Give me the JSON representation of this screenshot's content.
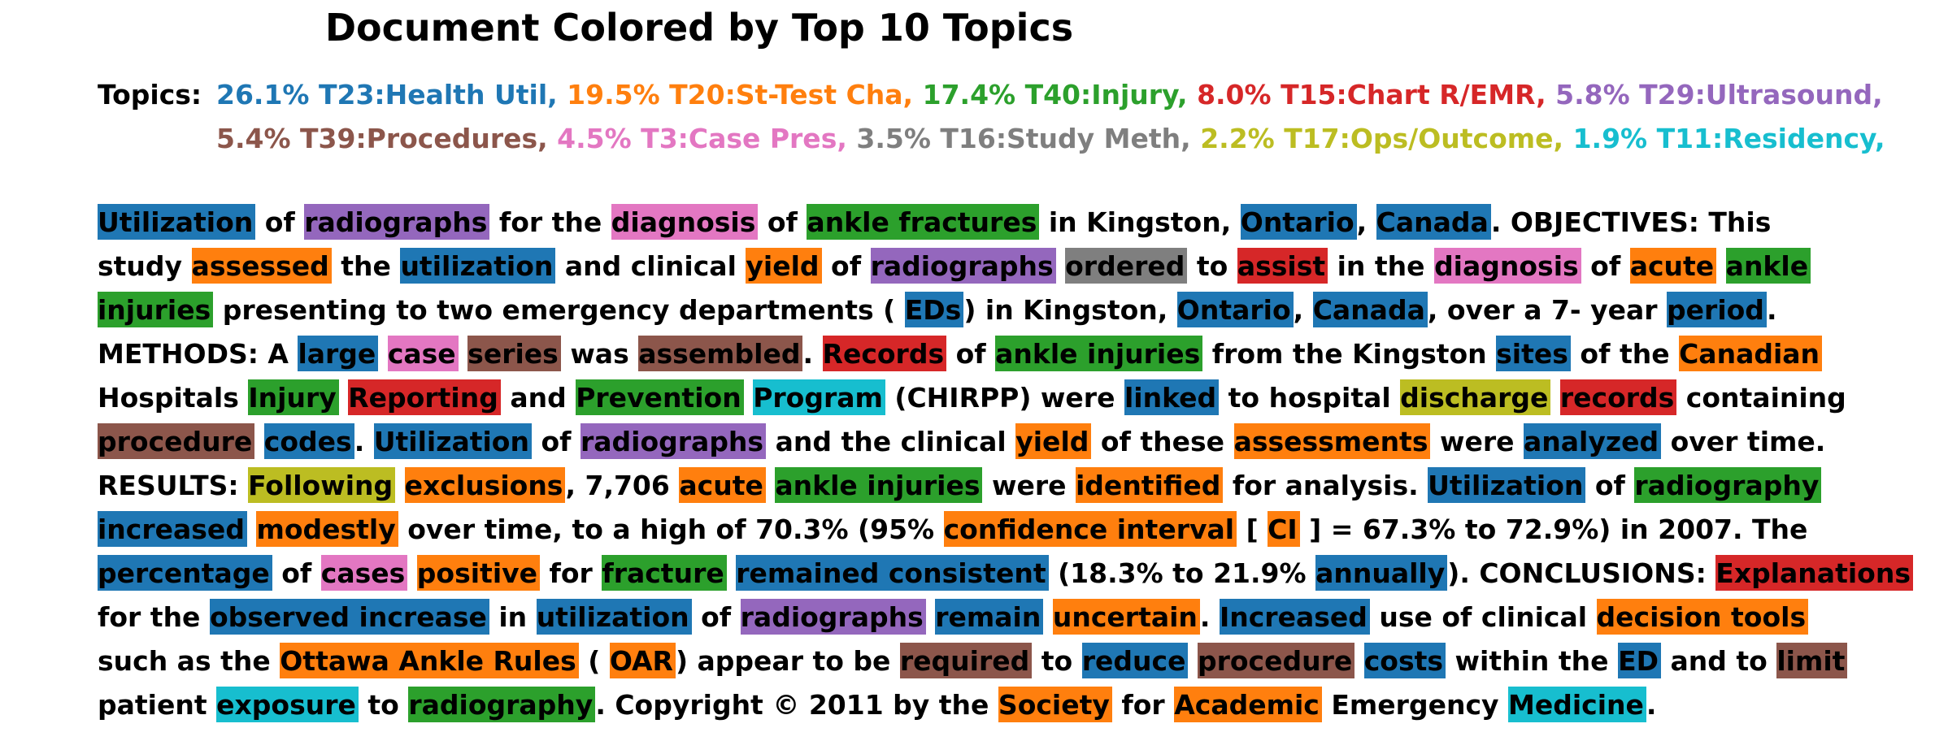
{
  "chart_data": {
    "type": "table",
    "title": "Document Colored by Top 10 Topics",
    "legend_label": "Topics:",
    "topics": [
      {
        "id": "T23",
        "label": "26.1% T23:Health Util,",
        "percent": 26.1,
        "color": "#1f77b4"
      },
      {
        "id": "T20",
        "label": "19.5% T20:St-Test Cha,",
        "percent": 19.5,
        "color": "#ff7f0e"
      },
      {
        "id": "T40",
        "label": "17.4% T40:Injury,",
        "percent": 17.4,
        "color": "#2ca02c"
      },
      {
        "id": "T15",
        "label": "8.0% T15:Chart R/EMR,",
        "percent": 8.0,
        "color": "#d62728"
      },
      {
        "id": "T29",
        "label": "5.8% T29:Ultrasound,",
        "percent": 5.8,
        "color": "#9467bd"
      },
      {
        "id": "T39",
        "label": "5.4% T39:Procedures,",
        "percent": 5.4,
        "color": "#8c564b"
      },
      {
        "id": "T3",
        "label": "4.5% T3:Case Pres,",
        "percent": 4.5,
        "color": "#e377c2"
      },
      {
        "id": "T16",
        "label": "3.5% T16:Study Meth,",
        "percent": 3.5,
        "color": "#7f7f7f"
      },
      {
        "id": "T17",
        "label": "2.2% T17:Ops/Outcome,",
        "percent": 2.2,
        "color": "#bcbd22"
      },
      {
        "id": "T11",
        "label": "1.9% T11:Residency,",
        "percent": 1.9,
        "color": "#17becf"
      }
    ],
    "lines": [
      [
        [
          "Utilization",
          "T23"
        ],
        [
          "of",
          ""
        ],
        [
          "radiographs",
          "T29"
        ],
        [
          "for the",
          ""
        ],
        [
          "diagnosis",
          "T3"
        ],
        [
          "of",
          ""
        ],
        [
          "ankle fractures",
          "T40"
        ],
        [
          "in Kingston,",
          ""
        ],
        [
          "Ontario",
          "T23"
        ],
        [
          ",",
          ""
        ],
        [
          "Canada",
          "T23"
        ],
        [
          ". OBJECTIVES: This",
          ""
        ]
      ],
      [
        [
          "study",
          ""
        ],
        [
          "assessed",
          "T20"
        ],
        [
          "the",
          ""
        ],
        [
          "utilization",
          "T23"
        ],
        [
          "and clinical",
          ""
        ],
        [
          "yield",
          "T20"
        ],
        [
          "of",
          ""
        ],
        [
          "radiographs",
          "T29"
        ],
        [
          "ordered",
          "T16"
        ],
        [
          "to",
          ""
        ],
        [
          "assist",
          "T15"
        ],
        [
          "in the",
          ""
        ],
        [
          "diagnosis",
          "T3"
        ],
        [
          "of",
          ""
        ],
        [
          "acute",
          "T20"
        ],
        [
          "ankle",
          "T40"
        ]
      ],
      [
        [
          "injuries",
          "T40"
        ],
        [
          "presenting to two emergency departments (",
          ""
        ],
        [
          "EDs",
          "T23"
        ],
        [
          ") in Kingston,",
          ""
        ],
        [
          "Ontario",
          "T23"
        ],
        [
          ",",
          ""
        ],
        [
          "Canada",
          "T23"
        ],
        [
          ", over a 7- year",
          ""
        ],
        [
          "period",
          "T23"
        ],
        [
          ".",
          ""
        ]
      ],
      [
        [
          "METHODS: A",
          ""
        ],
        [
          "large",
          "T23"
        ],
        [
          "case",
          "T3"
        ],
        [
          "series",
          "T39"
        ],
        [
          "was",
          ""
        ],
        [
          "assembled",
          "T39"
        ],
        [
          ".",
          ""
        ],
        [
          "Records",
          "T15"
        ],
        [
          "of",
          ""
        ],
        [
          "ankle injuries",
          "T40"
        ],
        [
          "from the Kingston",
          ""
        ],
        [
          "sites",
          "T23"
        ],
        [
          "of the",
          ""
        ],
        [
          "Canadian",
          "T20"
        ]
      ],
      [
        [
          "Hospitals",
          ""
        ],
        [
          "Injury",
          "T40"
        ],
        [
          "Reporting",
          "T15"
        ],
        [
          "and",
          ""
        ],
        [
          "Prevention",
          "T40"
        ],
        [
          "Program",
          "T11"
        ],
        [
          "(CHIRPP) were",
          ""
        ],
        [
          "linked",
          "T23"
        ],
        [
          "to hospital",
          ""
        ],
        [
          "discharge",
          "T17"
        ],
        [
          "records",
          "T15"
        ],
        [
          "containing",
          ""
        ]
      ],
      [
        [
          "procedure",
          "T39"
        ],
        [
          "codes",
          "T23"
        ],
        [
          ".",
          ""
        ],
        [
          "Utilization",
          "T23"
        ],
        [
          "of",
          ""
        ],
        [
          "radiographs",
          "T29"
        ],
        [
          "and the clinical",
          ""
        ],
        [
          "yield",
          "T20"
        ],
        [
          "of these",
          ""
        ],
        [
          "assessments",
          "T20"
        ],
        [
          "were",
          ""
        ],
        [
          "analyzed",
          "T23"
        ],
        [
          "over time.",
          ""
        ]
      ],
      [
        [
          "RESULTS:",
          ""
        ],
        [
          "Following",
          "T17"
        ],
        [
          "exclusions",
          "T20"
        ],
        [
          ", 7,706",
          ""
        ],
        [
          "acute",
          "T20"
        ],
        [
          "ankle injuries",
          "T40"
        ],
        [
          "were",
          ""
        ],
        [
          "identified",
          "T20"
        ],
        [
          "for analysis.",
          ""
        ],
        [
          "Utilization",
          "T23"
        ],
        [
          "of",
          ""
        ],
        [
          "radiography",
          "T40"
        ]
      ],
      [
        [
          "increased",
          "T23"
        ],
        [
          "modestly",
          "T20"
        ],
        [
          "over time, to a high of 70.3% (95%",
          ""
        ],
        [
          "confidence interval",
          "T20"
        ],
        [
          "[",
          ""
        ],
        [
          "CI",
          "T20"
        ],
        [
          "] = 67.3% to 72.9%) in 2007. The",
          ""
        ]
      ],
      [
        [
          "percentage",
          "T23"
        ],
        [
          "of",
          ""
        ],
        [
          "cases",
          "T3"
        ],
        [
          "positive",
          "T20"
        ],
        [
          "for",
          ""
        ],
        [
          "fracture",
          "T40"
        ],
        [
          "remained consistent",
          "T23"
        ],
        [
          "(18.3% to 21.9%",
          ""
        ],
        [
          "annually",
          "T23"
        ],
        [
          "). CONCLUSIONS:",
          ""
        ],
        [
          "Explanations",
          "T15"
        ]
      ],
      [
        [
          "for the",
          ""
        ],
        [
          "observed increase",
          "T23"
        ],
        [
          "in",
          ""
        ],
        [
          "utilization",
          "T23"
        ],
        [
          "of",
          ""
        ],
        [
          "radiographs",
          "T29"
        ],
        [
          "remain",
          "T23"
        ],
        [
          "uncertain",
          "T20"
        ],
        [
          ".",
          ""
        ],
        [
          "Increased",
          "T23"
        ],
        [
          "use of clinical",
          ""
        ],
        [
          "decision tools",
          "T20"
        ]
      ],
      [
        [
          "such as the",
          ""
        ],
        [
          "Ottawa Ankle Rules",
          "T20"
        ],
        [
          "(",
          ""
        ],
        [
          "OAR",
          "T20"
        ],
        [
          ") appear to be",
          ""
        ],
        [
          "required",
          "T39"
        ],
        [
          "to",
          ""
        ],
        [
          "reduce",
          "T23"
        ],
        [
          "procedure",
          "T39"
        ],
        [
          "costs",
          "T23"
        ],
        [
          "within the",
          ""
        ],
        [
          "ED",
          "T23"
        ],
        [
          "and to",
          ""
        ],
        [
          "limit",
          "T39"
        ]
      ],
      [
        [
          "patient",
          ""
        ],
        [
          "exposure",
          "T11"
        ],
        [
          "to",
          ""
        ],
        [
          "radiography",
          "T40"
        ],
        [
          ". Copyright © 2011 by the",
          ""
        ],
        [
          "Society",
          "T20"
        ],
        [
          "for",
          ""
        ],
        [
          "Academic",
          "T20"
        ],
        [
          "Emergency",
          ""
        ],
        [
          "Medicine",
          "T11"
        ],
        [
          ".",
          ""
        ]
      ]
    ]
  }
}
